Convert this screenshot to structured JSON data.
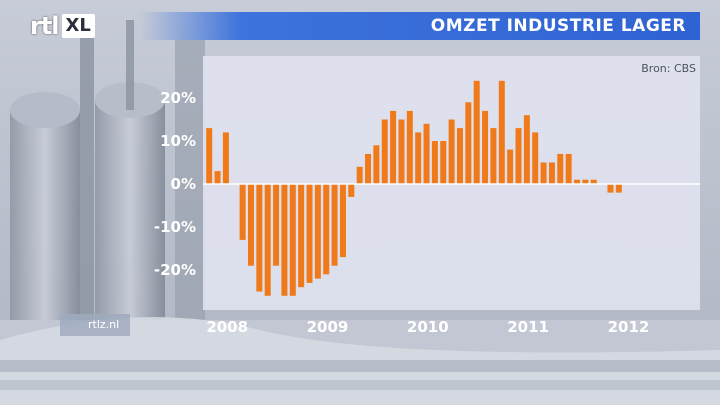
{
  "header": {
    "logo_rtl": "rtl",
    "logo_xl": "XL",
    "title": "OMZET INDUSTRIE LAGER"
  },
  "source": "Bron: CBS",
  "watermark": "rtlz.nl",
  "colors": {
    "bar": "#f07a1a",
    "title_bar": "#3d73dc",
    "panel": "#e1e4f0"
  },
  "chart_data": {
    "type": "bar",
    "title": "OMZET INDUSTRIE LAGER",
    "ylim": [
      -28,
      26
    ],
    "yticks": [
      20,
      10,
      0,
      -10,
      -20
    ],
    "ytick_labels": [
      "20%",
      "10%",
      "0%",
      "-10%",
      "-20%"
    ],
    "xtick_labels": [
      "2008",
      "2009",
      "2010",
      "2011",
      "2012"
    ],
    "xtick_month_index": [
      0,
      12,
      24,
      36,
      48
    ],
    "series": [
      {
        "values": [
          13,
          3,
          12,
          null,
          -13,
          -19,
          -25,
          -26,
          -19,
          -26,
          -26,
          -24,
          -23,
          -22,
          -21,
          -19,
          -17,
          -3,
          4,
          7,
          9,
          15,
          17,
          15,
          17,
          12,
          14,
          10,
          10,
          15,
          13,
          19,
          24,
          17,
          13,
          24,
          8,
          13,
          16,
          12,
          5,
          5,
          7,
          7,
          1,
          1,
          1,
          null,
          -2,
          -2
        ]
      }
    ]
  }
}
